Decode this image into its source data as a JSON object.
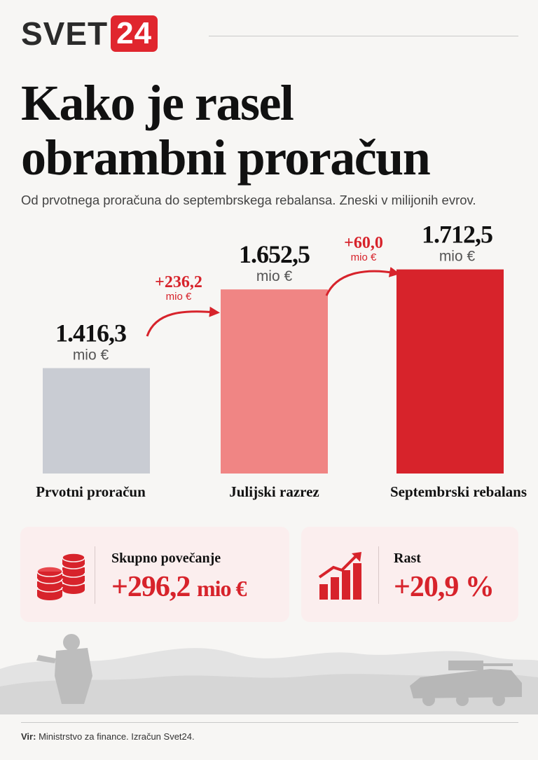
{
  "brand": {
    "name": "SVET",
    "number": "24"
  },
  "title_line1": "Kako je rasel",
  "title_line2": "obrambni proračun",
  "subtitle": "Od prvotnega proračuna do septembrskega rebalansa. Zneski v milijonih evrov.",
  "colors": {
    "accent": "#d7232b",
    "bar1": "#c9ccd3",
    "bar2": "#f08584",
    "bar3": "#d7232b",
    "text": "#111111"
  },
  "chart_data": {
    "type": "bar",
    "categories": [
      "Prvotni proračun",
      "Julijski razrez",
      "Septembrski rebalans"
    ],
    "values": [
      1416.3,
      1652.5,
      1712.5
    ],
    "value_labels": [
      "1.416,3",
      "1.652,5",
      "1.712,5"
    ],
    "unit_label": "mio €",
    "increments": [
      {
        "from": "Prvotni proračun",
        "to": "Julijski razrez",
        "value": 236.2,
        "label": "+236,2",
        "unit": "mio €"
      },
      {
        "from": "Julijski razrez",
        "to": "Septembrski rebalans",
        "value": 60.0,
        "label": "+60,0",
        "unit": "mio €"
      }
    ],
    "axis": "none",
    "grid": false
  },
  "cards": [
    {
      "icon": "coins-icon",
      "label": "Skupno povečanje",
      "value": "+296,2",
      "unit": "mio €"
    },
    {
      "icon": "growth-chart-icon",
      "label": "Rast",
      "value": "+20,9 %",
      "unit": ""
    }
  ],
  "source_label": "Vir:",
  "source_text": "Ministrstvo za finance. Izračun Svet24."
}
